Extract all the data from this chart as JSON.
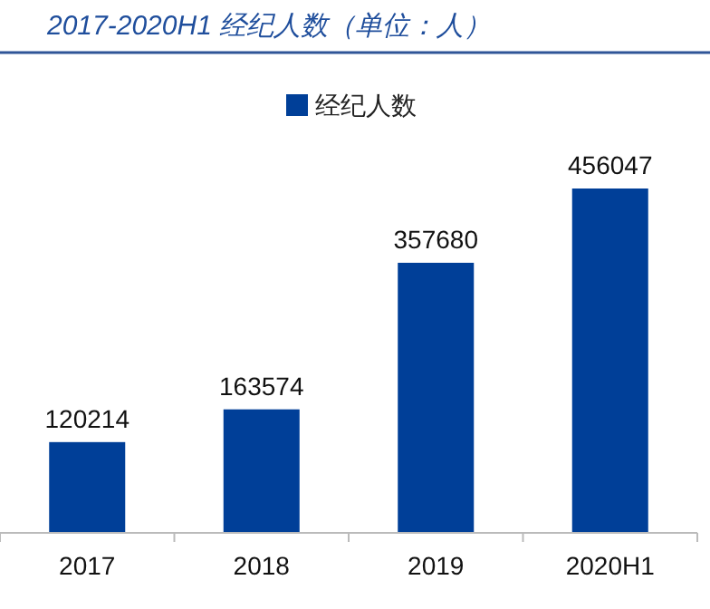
{
  "chart_data": {
    "type": "bar",
    "title": "2017-2020H1 经纪人数（单位：人）",
    "categories": [
      "2017",
      "2018",
      "2019",
      "2020H1"
    ],
    "series": [
      {
        "name": "经纪人数",
        "color": "#003f98",
        "values": [
          120214,
          163574,
          357680,
          456047
        ]
      }
    ],
    "data_labels": true,
    "legend": "top"
  }
}
